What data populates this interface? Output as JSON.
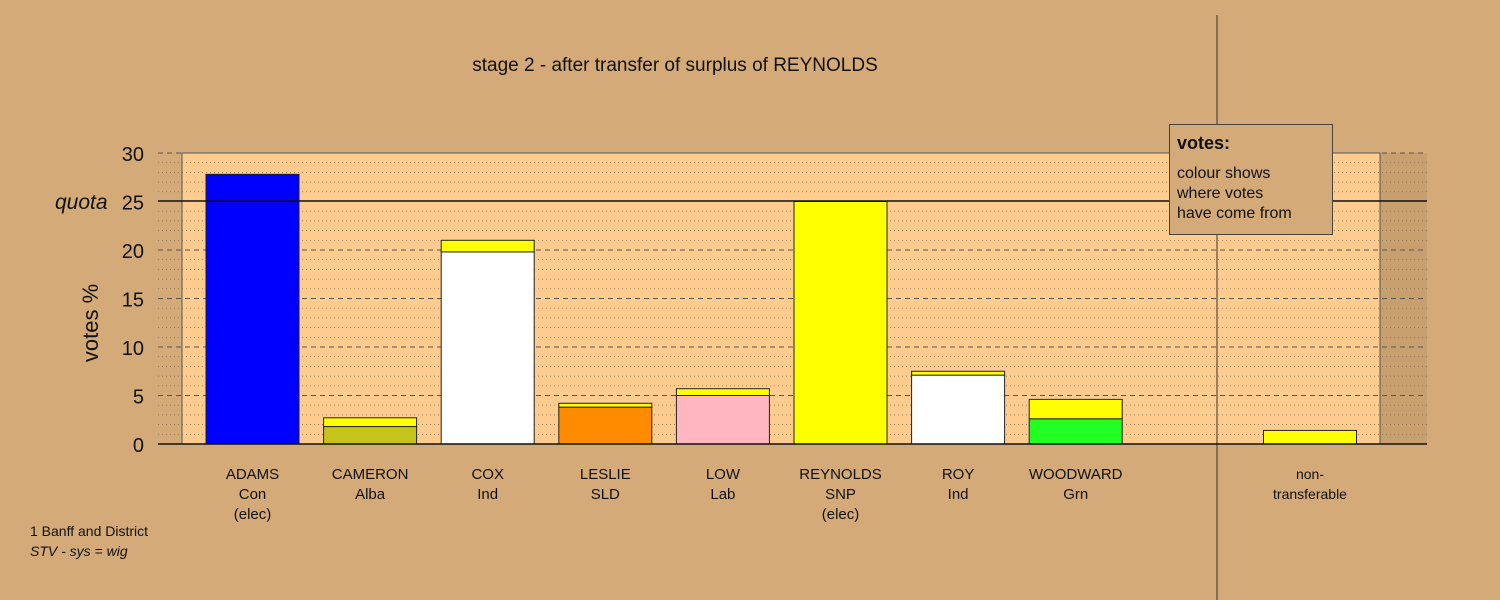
{
  "chart_data": {
    "type": "bar",
    "stacked": true,
    "title": "stage 2 - after transfer of surplus of REYNOLDS",
    "ylabel": "votes %",
    "xlabel": "",
    "ylim": [
      0,
      30
    ],
    "yticks": [
      0,
      5,
      10,
      15,
      20,
      25,
      30
    ],
    "quota": 25,
    "quota_label": "quota",
    "grid": true,
    "candidates": [
      {
        "name": "ADAMS",
        "party": "Con",
        "status": "(elec)",
        "segments": [
          {
            "value": 27.8,
            "color": "#0000ff"
          }
        ]
      },
      {
        "name": "CAMERON",
        "party": "Alba",
        "status": "",
        "segments": [
          {
            "value": 1.8,
            "color": "#c4c41a"
          },
          {
            "value": 0.9,
            "color": "#ffff00"
          }
        ]
      },
      {
        "name": "COX",
        "party": "Ind",
        "status": "",
        "segments": [
          {
            "value": 19.8,
            "color": "#ffffff"
          },
          {
            "value": 1.2,
            "color": "#ffff00"
          }
        ]
      },
      {
        "name": "LESLIE",
        "party": "SLD",
        "status": "",
        "segments": [
          {
            "value": 3.8,
            "color": "#ff8c00"
          },
          {
            "value": 0.4,
            "color": "#ffff00"
          }
        ]
      },
      {
        "name": "LOW",
        "party": "Lab",
        "status": "",
        "segments": [
          {
            "value": 5.0,
            "color": "#ffb6c1"
          },
          {
            "value": 0.7,
            "color": "#ffff00"
          }
        ]
      },
      {
        "name": "REYNOLDS",
        "party": "SNP",
        "status": "(elec)",
        "segments": [
          {
            "value": 25.0,
            "color": "#ffff00"
          }
        ]
      },
      {
        "name": "ROY",
        "party": "Ind",
        "status": "",
        "segments": [
          {
            "value": 7.1,
            "color": "#ffffff"
          },
          {
            "value": 0.4,
            "color": "#ffff00"
          }
        ]
      },
      {
        "name": "WOODWARD",
        "party": "Grn",
        "status": "",
        "segments": [
          {
            "value": 2.6,
            "color": "#22ff22"
          },
          {
            "value": 2.0,
            "color": "#ffff00"
          }
        ]
      }
    ],
    "nontransferable": {
      "line1": "non-",
      "line2": "transferable",
      "value": 1.4,
      "color": "#ffff00"
    }
  },
  "legend": {
    "title": "votes:",
    "lines": [
      "colour shows",
      "where votes",
      "have come from"
    ]
  },
  "footnote": {
    "line1": "1 Banff and District",
    "line2": "STV - sys = wig"
  }
}
